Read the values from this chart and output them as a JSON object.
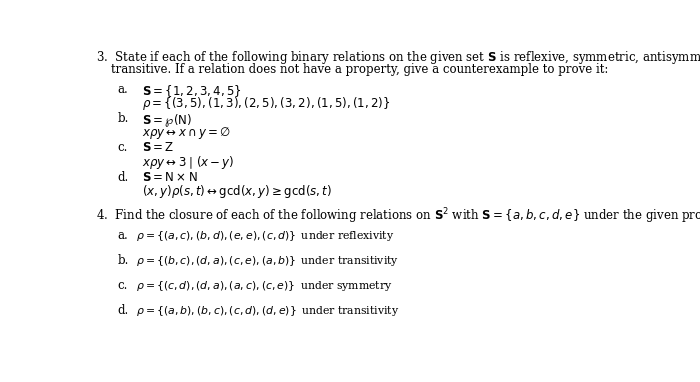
{
  "background_color": "#ffffff",
  "fontsize": 8.5,
  "fontsize_small": 7.8,
  "title_line1": "3.  State if each of the following binary relations on the given set $\\mathbf{S}$ is reflexive, symmetric, antisymmetric, and",
  "title_line2": "    transitive. If a relation does not have a property, give a counterexample to prove it:",
  "sec3_a_label": "a.",
  "sec3_a_line1": "$\\mathbf{S} = \\{1, 2, 3, 4, 5\\}$",
  "sec3_a_line2": "$\\rho = \\{(3, 5), (1, 3), (2, 5), (3, 2), (1, 5), (1, 2)\\}$",
  "sec3_b_label": "b.",
  "sec3_b_line1": "$\\mathbf{S} = \\wp(\\mathrm{N})$",
  "sec3_b_line2": "$x\\rho y \\leftrightarrow x \\cap y = \\emptyset$",
  "sec3_c_label": "c.",
  "sec3_c_line1": "$\\mathbf{S} = \\mathrm{Z}$",
  "sec3_c_line2": "$x\\rho y \\leftrightarrow 3 \\mid (x - y)$",
  "sec3_d_label": "d.",
  "sec3_d_line1": "$\\mathbf{S} = \\mathrm{N} \\times \\mathrm{N}$",
  "sec3_d_line2": "$(x, y)\\rho(s, t) \\leftrightarrow \\mathrm{gcd}(x, y) \\geq \\mathrm{gcd}(s, t)$",
  "sec4_header": "4.  Find the closure of each of the following relations on $\\mathbf{S}^2$ with $\\mathbf{S} = \\{a, b, c, d, e\\}$ under the given property",
  "sec4_a_label": "a.",
  "sec4_a_text": "$\\rho = \\{(a, c), (b, d), (e, e), (c, d)\\}\\,$ under reflexivity",
  "sec4_b_label": "b.",
  "sec4_b_text": "$\\rho = \\{(b, c), (d, a), (c, e), (a, b)\\}\\,$ under transitivity",
  "sec4_c_label": "c.",
  "sec4_c_text": "$\\rho = \\{(c, d), (d, a), (a, c), (c, e)\\}\\,$ under symmetry",
  "sec4_d_label": "d.",
  "sec4_d_text": "$\\rho = \\{(a, b), (b, c), (c, d), (d, e)\\}\\,$ under transitivity"
}
